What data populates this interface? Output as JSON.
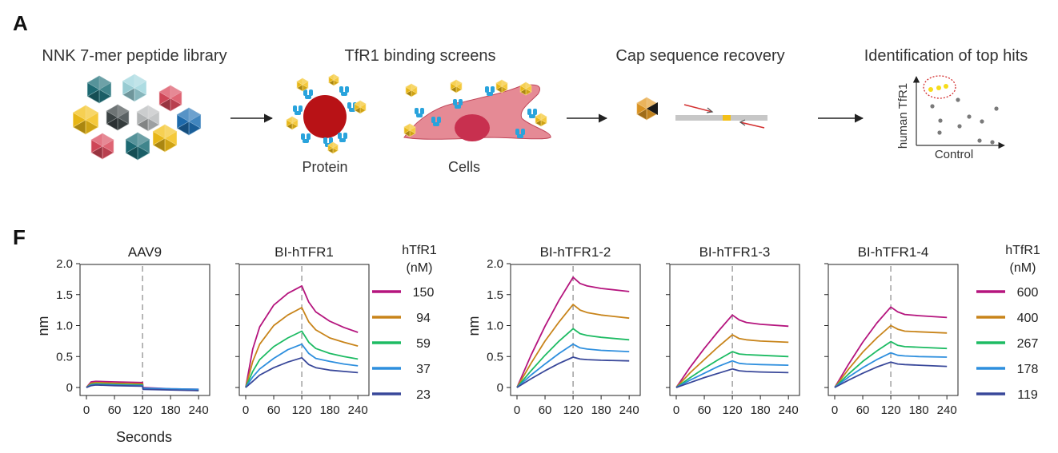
{
  "panel_a": {
    "letter": "A",
    "steps": [
      {
        "title": "NNK 7-mer peptide library"
      },
      {
        "title": "TfR1 binding screens",
        "sublabels": [
          "Protein",
          "Cells"
        ]
      },
      {
        "title": "Cap sequence recovery"
      },
      {
        "title": "Identification of top hits",
        "ylabel": "human TfR1",
        "xlabel": "Control"
      }
    ],
    "colors": {
      "capsid_teal": "#1e6f78",
      "capsid_yellow": "#f3c018",
      "capsid_red": "#d94a5c",
      "capsid_blue": "#1f6fb3",
      "capsid_grey": "#6b6f70",
      "receptor_blue": "#29a3dc",
      "protein_red": "#b81216",
      "cell_pink": "#e58a95",
      "nucleus": "#c8304f",
      "hit_yellow": "#f6dc1a",
      "dots_grey": "#7a7a7a"
    }
  },
  "panel_f": {
    "letter": "F",
    "axis_ylabel": "nm",
    "axis_xlabel": "Seconds",
    "legend1": {
      "title": [
        "hTfR1",
        "(nM)"
      ],
      "entries": [
        "150",
        "94",
        "59",
        "37",
        "23"
      ]
    },
    "legend2": {
      "title": [
        "hTfR1",
        "(nM)"
      ],
      "entries": [
        "600",
        "400",
        "267",
        "178",
        "119"
      ]
    },
    "series_colors": [
      "#b5157e",
      "#c8841a",
      "#1dbb63",
      "#2e8fde",
      "#39489a"
    ]
  },
  "chart_data": [
    {
      "type": "line",
      "title": "AAV9",
      "xlabel": "Seconds",
      "ylabel": "nm",
      "xlim": [
        0,
        250
      ],
      "ylim": [
        -0.1,
        2.0
      ],
      "xticks": [
        0,
        60,
        120,
        180,
        240
      ],
      "yticks": [
        0,
        0.5,
        1.0,
        1.5,
        2.0
      ],
      "ytick_labels": [
        "0",
        "0.5",
        "1.0",
        "1.5",
        "2.0"
      ],
      "dashed_x": 120,
      "series": [
        {
          "color": "#b5157e",
          "x": [
            0,
            10,
            20,
            60,
            120,
            121,
            180,
            240
          ],
          "y": [
            0,
            0.09,
            0.1,
            0.09,
            0.08,
            0.0,
            -0.02,
            -0.03
          ]
        },
        {
          "color": "#c8841a",
          "x": [
            0,
            10,
            20,
            60,
            120,
            121,
            180,
            240
          ],
          "y": [
            0,
            0.07,
            0.08,
            0.07,
            0.06,
            -0.01,
            -0.03,
            -0.04
          ]
        },
        {
          "color": "#1dbb63",
          "x": [
            0,
            10,
            20,
            60,
            120,
            121,
            180,
            240
          ],
          "y": [
            0,
            0.05,
            0.06,
            0.05,
            0.04,
            -0.02,
            -0.03,
            -0.05
          ]
        },
        {
          "color": "#2e8fde",
          "x": [
            0,
            10,
            20,
            60,
            120,
            121,
            180,
            240
          ],
          "y": [
            0,
            0.04,
            0.05,
            0.04,
            0.03,
            -0.01,
            -0.02,
            -0.03
          ]
        },
        {
          "color": "#39489a",
          "x": [
            0,
            10,
            20,
            60,
            120,
            121,
            180,
            240
          ],
          "y": [
            0,
            0.03,
            0.04,
            0.03,
            0.02,
            -0.03,
            -0.04,
            -0.05
          ]
        }
      ]
    },
    {
      "type": "line",
      "title": "BI-hTFR1",
      "xlim": [
        0,
        250
      ],
      "ylim": [
        -0.1,
        2.0
      ],
      "xticks": [
        0,
        60,
        120,
        180,
        240
      ],
      "dashed_x": 120,
      "series": [
        {
          "color": "#b5157e",
          "x": [
            0,
            15,
            30,
            60,
            90,
            120,
            135,
            150,
            180,
            210,
            240
          ],
          "y": [
            0,
            0.62,
            0.98,
            1.33,
            1.52,
            1.64,
            1.38,
            1.22,
            1.07,
            0.97,
            0.89
          ]
        },
        {
          "color": "#c8841a",
          "x": [
            0,
            15,
            30,
            60,
            90,
            120,
            135,
            150,
            180,
            210,
            240
          ],
          "y": [
            0,
            0.42,
            0.7,
            1.0,
            1.17,
            1.29,
            1.06,
            0.93,
            0.8,
            0.73,
            0.67
          ]
        },
        {
          "color": "#1dbb63",
          "x": [
            0,
            15,
            30,
            60,
            90,
            120,
            135,
            150,
            180,
            210,
            240
          ],
          "y": [
            0,
            0.26,
            0.45,
            0.66,
            0.8,
            0.91,
            0.73,
            0.63,
            0.55,
            0.5,
            0.46
          ]
        },
        {
          "color": "#2e8fde",
          "x": [
            0,
            15,
            30,
            60,
            90,
            120,
            135,
            150,
            180,
            210,
            240
          ],
          "y": [
            0,
            0.17,
            0.3,
            0.47,
            0.61,
            0.7,
            0.55,
            0.47,
            0.42,
            0.38,
            0.35
          ]
        },
        {
          "color": "#39489a",
          "x": [
            0,
            15,
            30,
            60,
            90,
            120,
            135,
            150,
            180,
            210,
            240
          ],
          "y": [
            0,
            0.1,
            0.2,
            0.32,
            0.41,
            0.48,
            0.37,
            0.32,
            0.28,
            0.26,
            0.24
          ]
        }
      ]
    },
    {
      "type": "line",
      "title": "BI-hTFR1-2",
      "ylabel": "nm",
      "xlim": [
        0,
        250
      ],
      "ylim": [
        -0.1,
        2.0
      ],
      "xticks": [
        0,
        60,
        120,
        180,
        240
      ],
      "yticks": [
        0,
        0.5,
        1.0,
        1.5,
        2.0
      ],
      "ytick_labels": [
        "0",
        "0.5",
        "1.0",
        "1.5",
        "2.0"
      ],
      "dashed_x": 120,
      "series": [
        {
          "color": "#b5157e",
          "x": [
            0,
            30,
            60,
            90,
            120,
            135,
            150,
            180,
            240
          ],
          "y": [
            0,
            0.52,
            0.99,
            1.41,
            1.78,
            1.68,
            1.64,
            1.6,
            1.55
          ]
        },
        {
          "color": "#c8841a",
          "x": [
            0,
            30,
            60,
            90,
            120,
            135,
            150,
            180,
            240
          ],
          "y": [
            0,
            0.39,
            0.75,
            1.06,
            1.34,
            1.25,
            1.21,
            1.17,
            1.12
          ]
        },
        {
          "color": "#1dbb63",
          "x": [
            0,
            30,
            60,
            90,
            120,
            135,
            150,
            180,
            240
          ],
          "y": [
            0,
            0.27,
            0.52,
            0.75,
            0.95,
            0.87,
            0.84,
            0.81,
            0.77
          ]
        },
        {
          "color": "#2e8fde",
          "x": [
            0,
            30,
            60,
            90,
            120,
            135,
            150,
            180,
            240
          ],
          "y": [
            0,
            0.2,
            0.38,
            0.55,
            0.7,
            0.64,
            0.62,
            0.6,
            0.58
          ]
        },
        {
          "color": "#39489a",
          "x": [
            0,
            30,
            60,
            90,
            120,
            135,
            150,
            180,
            240
          ],
          "y": [
            0,
            0.14,
            0.27,
            0.39,
            0.49,
            0.46,
            0.45,
            0.44,
            0.43
          ]
        }
      ]
    },
    {
      "type": "line",
      "title": "BI-hTFR1-3",
      "xlim": [
        0,
        250
      ],
      "ylim": [
        -0.1,
        2.0
      ],
      "xticks": [
        0,
        60,
        120,
        180,
        240
      ],
      "dashed_x": 120,
      "series": [
        {
          "color": "#b5157e",
          "x": [
            0,
            30,
            60,
            90,
            120,
            135,
            150,
            180,
            240
          ],
          "y": [
            0,
            0.33,
            0.63,
            0.91,
            1.17,
            1.09,
            1.05,
            1.02,
            0.99
          ]
        },
        {
          "color": "#c8841a",
          "x": [
            0,
            30,
            60,
            90,
            120,
            135,
            150,
            180,
            240
          ],
          "y": [
            0,
            0.24,
            0.45,
            0.66,
            0.85,
            0.79,
            0.77,
            0.75,
            0.73
          ]
        },
        {
          "color": "#1dbb63",
          "x": [
            0,
            30,
            60,
            90,
            120,
            135,
            150,
            180,
            240
          ],
          "y": [
            0,
            0.16,
            0.31,
            0.45,
            0.58,
            0.54,
            0.53,
            0.52,
            0.5
          ]
        },
        {
          "color": "#2e8fde",
          "x": [
            0,
            30,
            60,
            90,
            120,
            135,
            150,
            180,
            240
          ],
          "y": [
            0,
            0.12,
            0.23,
            0.34,
            0.43,
            0.39,
            0.38,
            0.37,
            0.36
          ]
        },
        {
          "color": "#39489a",
          "x": [
            0,
            30,
            60,
            90,
            120,
            135,
            150,
            180,
            240
          ],
          "y": [
            0,
            0.08,
            0.16,
            0.23,
            0.3,
            0.27,
            0.26,
            0.25,
            0.24
          ]
        }
      ]
    },
    {
      "type": "line",
      "title": "BI-hTFR1-4",
      "xlim": [
        0,
        250
      ],
      "ylim": [
        -0.1,
        2.0
      ],
      "xticks": [
        0,
        60,
        120,
        180,
        240
      ],
      "dashed_x": 120,
      "series": [
        {
          "color": "#b5157e",
          "x": [
            0,
            30,
            60,
            90,
            120,
            135,
            150,
            180,
            240
          ],
          "y": [
            0,
            0.38,
            0.73,
            1.04,
            1.3,
            1.22,
            1.18,
            1.16,
            1.13
          ]
        },
        {
          "color": "#c8841a",
          "x": [
            0,
            30,
            60,
            90,
            120,
            135,
            150,
            180,
            240
          ],
          "y": [
            0,
            0.3,
            0.57,
            0.8,
            1.0,
            0.94,
            0.91,
            0.9,
            0.88
          ]
        },
        {
          "color": "#1dbb63",
          "x": [
            0,
            30,
            60,
            90,
            120,
            135,
            150,
            180,
            240
          ],
          "y": [
            0,
            0.22,
            0.42,
            0.59,
            0.74,
            0.68,
            0.66,
            0.65,
            0.63
          ]
        },
        {
          "color": "#2e8fde",
          "x": [
            0,
            30,
            60,
            90,
            120,
            135,
            150,
            180,
            240
          ],
          "y": [
            0,
            0.17,
            0.32,
            0.45,
            0.56,
            0.52,
            0.51,
            0.5,
            0.49
          ]
        },
        {
          "color": "#39489a",
          "x": [
            0,
            30,
            60,
            90,
            120,
            135,
            150,
            180,
            240
          ],
          "y": [
            0,
            0.12,
            0.23,
            0.33,
            0.41,
            0.38,
            0.37,
            0.36,
            0.34
          ]
        }
      ]
    }
  ]
}
